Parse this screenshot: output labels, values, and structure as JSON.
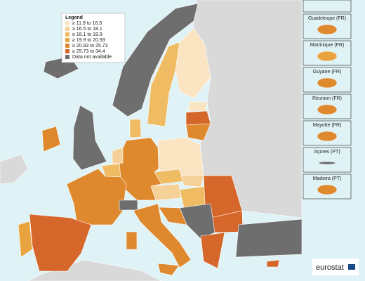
{
  "legend": {
    "title": "Legend",
    "items": [
      {
        "label": "≥ 11.8 to 16.5",
        "color": "#fbe4c2"
      },
      {
        "label": "≥ 16.5 to 18.1",
        "color": "#f5d197"
      },
      {
        "label": "≥ 18.1 to 19.9",
        "color": "#efbb63"
      },
      {
        "label": "≥ 19.9 to 20.93",
        "color": "#e9a43f"
      },
      {
        "label": "≥ 20.93 to 25.73",
        "color": "#df892f"
      },
      {
        "label": "≥ 25.73 to 34.4",
        "color": "#d6672b"
      },
      {
        "label": "Data not available",
        "color": "#6e6e6e"
      }
    ]
  },
  "insets": [
    "Guadeloupe (FR)",
    "Martinique (FR)",
    "Guyane (FR)",
    "Réunion (FR)",
    "Mayotte (FR)",
    "Açores (PT)",
    "Madeira (PT)"
  ],
  "logo": "eurostat"
}
